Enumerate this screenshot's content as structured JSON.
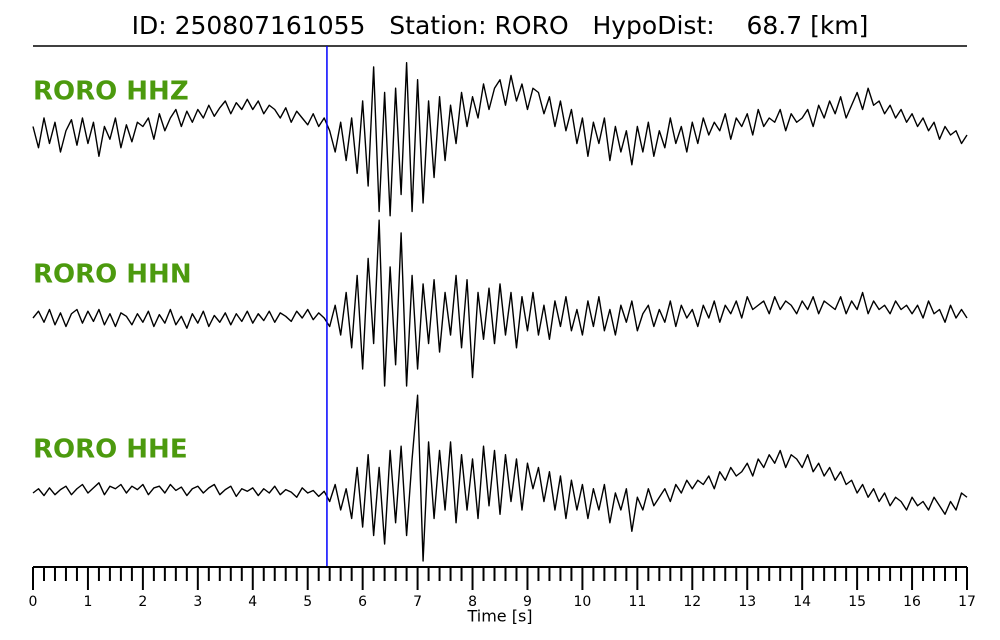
{
  "chart_data": {
    "type": "line",
    "title": "ID: 250807161055   Station: RORO   HypoDist:    68.7 [km]",
    "xlabel": "Time [s]",
    "xlim": [
      0,
      17
    ],
    "xticks": [
      0,
      1,
      2,
      3,
      4,
      5,
      6,
      7,
      8,
      9,
      10,
      11,
      12,
      13,
      14,
      15,
      16,
      17
    ],
    "minor_tick_step": 0.2,
    "ylim": [
      -1,
      1
    ],
    "label_color": "#4c9a0e",
    "picks": [
      {
        "x": 5.35,
        "color": "#0000ff"
      }
    ],
    "x": [
      0,
      0.1,
      0.2,
      0.3,
      0.4,
      0.5,
      0.6,
      0.7,
      0.8,
      0.9,
      1,
      1.1,
      1.2,
      1.3,
      1.4,
      1.5,
      1.6,
      1.7,
      1.8,
      1.9,
      2,
      2.1,
      2.2,
      2.3,
      2.4,
      2.5,
      2.6,
      2.7,
      2.8,
      2.9,
      3,
      3.1,
      3.2,
      3.3,
      3.4,
      3.5,
      3.6,
      3.7,
      3.8,
      3.9,
      4,
      4.1,
      4.2,
      4.3,
      4.4,
      4.5,
      4.6,
      4.7,
      4.8,
      4.9,
      5,
      5.1,
      5.2,
      5.3,
      5.4,
      5.5,
      5.6,
      5.7,
      5.8,
      5.9,
      6,
      6.1,
      6.2,
      6.3,
      6.4,
      6.5,
      6.6,
      6.7,
      6.8,
      6.9,
      7,
      7.1,
      7.2,
      7.3,
      7.4,
      7.5,
      7.6,
      7.7,
      7.8,
      7.9,
      8,
      8.1,
      8.2,
      8.3,
      8.4,
      8.5,
      8.6,
      8.7,
      8.8,
      8.9,
      9,
      9.1,
      9.2,
      9.3,
      9.4,
      9.5,
      9.6,
      9.7,
      9.8,
      9.9,
      10,
      10.1,
      10.2,
      10.3,
      10.4,
      10.5,
      10.6,
      10.7,
      10.8,
      10.9,
      11,
      11.1,
      11.2,
      11.3,
      11.4,
      11.5,
      11.6,
      11.7,
      11.8,
      11.9,
      12,
      12.1,
      12.2,
      12.3,
      12.4,
      12.5,
      12.6,
      12.7,
      12.8,
      12.9,
      13,
      13.1,
      13.2,
      13.3,
      13.4,
      13.5,
      13.6,
      13.7,
      13.8,
      13.9,
      14,
      14.1,
      14.2,
      14.3,
      14.4,
      14.5,
      14.6,
      14.7,
      14.8,
      14.9,
      15,
      15.1,
      15.2,
      15.3,
      15.4,
      15.5,
      15.6,
      15.7,
      15.8,
      15.9,
      16,
      16.1,
      16.2,
      16.3,
      16.4,
      16.5,
      16.6,
      16.7,
      16.8,
      16.9,
      17
    ],
    "series": [
      {
        "name": "RORO HHZ",
        "color": "#000000",
        "values": [
          0.1,
          -0.15,
          0.2,
          -0.1,
          0.15,
          -0.2,
          0.05,
          0.18,
          -0.12,
          0.2,
          -0.1,
          0.15,
          -0.25,
          0.1,
          -0.05,
          0.2,
          -0.15,
          0.12,
          -0.08,
          0.15,
          0.1,
          0.2,
          -0.05,
          0.25,
          0.05,
          0.2,
          0.3,
          0.1,
          0.28,
          0.15,
          0.3,
          0.2,
          0.35,
          0.22,
          0.32,
          0.4,
          0.25,
          0.38,
          0.3,
          0.42,
          0.3,
          0.4,
          0.25,
          0.35,
          0.3,
          0.2,
          0.32,
          0.15,
          0.28,
          0.2,
          0.12,
          0.25,
          0.1,
          0.2,
          0.05,
          -0.2,
          0.15,
          -0.3,
          0.2,
          -0.45,
          0.4,
          -0.6,
          0.8,
          -0.9,
          0.5,
          -0.95,
          0.55,
          -0.7,
          0.85,
          -0.9,
          0.65,
          -0.8,
          0.4,
          -0.5,
          0.45,
          -0.3,
          0.35,
          -0.1,
          0.5,
          0.1,
          0.45,
          0.2,
          0.6,
          0.3,
          0.55,
          0.65,
          0.35,
          0.7,
          0.4,
          0.6,
          0.3,
          0.55,
          0.5,
          0.25,
          0.45,
          0.1,
          0.4,
          0.05,
          0.3,
          -0.1,
          0.2,
          -0.25,
          0.15,
          -0.1,
          0.2,
          -0.3,
          0.1,
          -0.2,
          0.05,
          -0.35,
          0.1,
          -0.2,
          0.15,
          -0.25,
          0.05,
          -0.15,
          0.2,
          -0.1,
          0.1,
          -0.2,
          0.15,
          -0.1,
          0.2,
          0,
          0.15,
          0.05,
          0.25,
          -0.05,
          0.2,
          0.1,
          0.25,
          0,
          0.3,
          0.1,
          0.2,
          0.15,
          0.3,
          0.05,
          0.25,
          0.15,
          0.2,
          0.3,
          0.1,
          0.35,
          0.2,
          0.4,
          0.25,
          0.45,
          0.2,
          0.35,
          0.5,
          0.3,
          0.55,
          0.35,
          0.4,
          0.25,
          0.35,
          0.2,
          0.3,
          0.15,
          0.25,
          0.1,
          0.2,
          0.05,
          0.15,
          -0.05,
          0.1,
          0,
          0.05,
          -0.1,
          0
        ]
      },
      {
        "name": "RORO HHN",
        "color": "#000000",
        "values": [
          0,
          0.08,
          -0.05,
          0.1,
          -0.08,
          0.06,
          -0.1,
          0.05,
          0.1,
          -0.06,
          0.08,
          -0.04,
          0.1,
          -0.08,
          0.05,
          -0.1,
          0.06,
          0.02,
          -0.08,
          0.05,
          -0.05,
          0.08,
          -0.1,
          0.04,
          -0.06,
          0.1,
          -0.08,
          0.02,
          -0.12,
          0.05,
          -0.06,
          0.08,
          -0.1,
          0.03,
          -0.05,
          0.06,
          -0.08,
          0.05,
          -0.04,
          0.08,
          -0.06,
          0.05,
          -0.03,
          0.08,
          -0.05,
          0.06,
          0.02,
          -0.04,
          0.08,
          0,
          0.1,
          -0.02,
          0.06,
          0,
          -0.1,
          0.15,
          -0.2,
          0.3,
          -0.35,
          0.5,
          -0.6,
          0.7,
          -0.3,
          1.15,
          -0.8,
          0.6,
          -0.55,
          1.0,
          -0.8,
          0.5,
          -0.6,
          0.4,
          -0.3,
          0.45,
          -0.4,
          0.3,
          -0.2,
          0.5,
          -0.35,
          0.45,
          -0.7,
          0.3,
          -0.25,
          0.35,
          -0.3,
          0.4,
          -0.2,
          0.3,
          -0.35,
          0.25,
          -0.15,
          0.3,
          -0.2,
          0.15,
          -0.25,
          0.2,
          -0.1,
          0.25,
          -0.15,
          0.1,
          -0.2,
          0.2,
          -0.1,
          0.25,
          -0.15,
          0.1,
          -0.2,
          0.15,
          -0.05,
          0.2,
          -0.15,
          0.05,
          0.15,
          -0.1,
          0.1,
          -0.05,
          0.2,
          -0.1,
          0.15,
          0,
          0.1,
          -0.1,
          0.15,
          0,
          0.2,
          -0.05,
          0.15,
          0.05,
          0.2,
          0,
          0.25,
          0.1,
          0.15,
          0.2,
          0.05,
          0.25,
          0.1,
          0.2,
          0.15,
          0.05,
          0.2,
          0.1,
          0.25,
          0.05,
          0.2,
          0.15,
          0.1,
          0.25,
          0.05,
          0.2,
          0.1,
          0.3,
          0.05,
          0.2,
          0.1,
          0.15,
          0.05,
          0.2,
          0.1,
          0.15,
          0.05,
          0.15,
          0,
          0.2,
          0.05,
          0.1,
          -0.05,
          0.15,
          0,
          0.1,
          0
        ]
      },
      {
        "name": "RORO HHE",
        "color": "#000000",
        "values": [
          0,
          0.05,
          -0.03,
          0.06,
          -0.02,
          0.04,
          0.08,
          -0.02,
          0.05,
          0.1,
          0,
          0.06,
          0.12,
          -0.02,
          0.08,
          0.05,
          0.1,
          0,
          0.08,
          0.04,
          0.1,
          -0.02,
          0.06,
          0.08,
          0,
          0.1,
          0.03,
          0.07,
          -0.03,
          0.05,
          0.08,
          0,
          0.06,
          0.1,
          -0.02,
          0.04,
          0.08,
          -0.04,
          0.05,
          0.02,
          0.06,
          -0.03,
          0.05,
          0,
          0.08,
          -0.02,
          0.04,
          0.01,
          -0.05,
          0.06,
          0,
          0.03,
          -0.04,
          0.02,
          -0.1,
          0.1,
          -0.2,
          0.05,
          -0.3,
          0.3,
          -0.4,
          0.45,
          -0.5,
          0.3,
          -0.6,
          0.5,
          -0.35,
          0.55,
          -0.5,
          0.4,
          1.15,
          -0.8,
          0.6,
          -0.3,
          0.5,
          -0.2,
          0.6,
          -0.35,
          0.45,
          -0.2,
          0.4,
          -0.3,
          0.55,
          -0.15,
          0.5,
          -0.25,
          0.45,
          -0.1,
          0.4,
          -0.2,
          0.35,
          0.05,
          0.3,
          -0.1,
          0.25,
          -0.2,
          0.2,
          -0.3,
          0.15,
          -0.2,
          0.1,
          -0.3,
          0.05,
          -0.2,
          0.1,
          -0.35,
          0,
          -0.2,
          0.05,
          -0.45,
          -0.05,
          -0.2,
          0.05,
          -0.15,
          -0.05,
          0.05,
          -0.1,
          0.1,
          0,
          0.15,
          0.05,
          0.15,
          0.1,
          0.2,
          0.05,
          0.25,
          0.15,
          0.3,
          0.2,
          0.25,
          0.35,
          0.2,
          0.4,
          0.3,
          0.45,
          0.35,
          0.5,
          0.3,
          0.45,
          0.4,
          0.3,
          0.45,
          0.25,
          0.35,
          0.2,
          0.3,
          0.15,
          0.25,
          0.1,
          0.15,
          0,
          0.1,
          -0.05,
          0.05,
          -0.1,
          0,
          -0.15,
          -0.05,
          -0.1,
          -0.2,
          -0.05,
          -0.15,
          -0.1,
          -0.2,
          -0.05,
          -0.15,
          -0.25,
          -0.1,
          -0.2,
          0,
          -0.05
        ]
      }
    ]
  }
}
